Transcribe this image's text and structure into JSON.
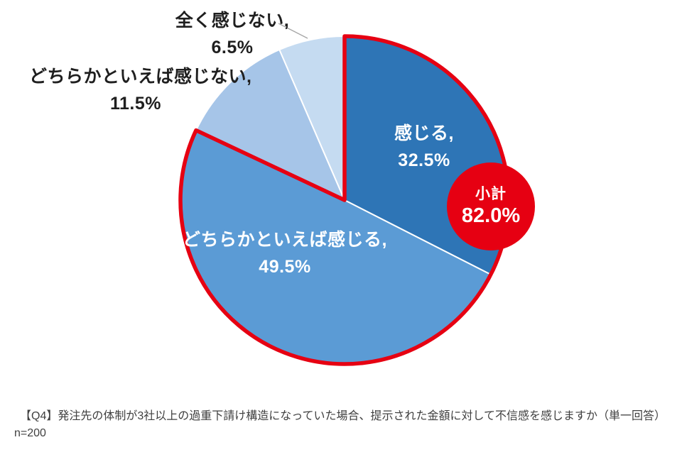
{
  "chart_data": {
    "type": "pie",
    "title": "",
    "categories": [
      "感じる",
      "どちらかといえば感じる",
      "どちらかといえば感じない",
      "全く感じない"
    ],
    "values": [
      32.5,
      49.5,
      11.5,
      6.5
    ],
    "unit": "%",
    "colors": [
      "#2E75B6",
      "#5B9BD5",
      "#A6C5E8",
      "#C5DBF1"
    ],
    "start_angle_deg": 0,
    "direction": "clockwise",
    "slice_separator_color": "#ffffff",
    "subtotal": {
      "label": "小計",
      "value": 82.0,
      "value_label": "82.0%",
      "covers": [
        "感じる",
        "どちらかといえば感じる"
      ],
      "color": "#E60012"
    }
  },
  "labels": {
    "feel": {
      "line1": "感じる,",
      "line2": "32.5%"
    },
    "rather_feel": {
      "line1": "どちらかといえば感じる,",
      "line2": "49.5%"
    },
    "rather_not": {
      "line1": "どちらかといえば感じない,",
      "line2": "11.5%"
    },
    "none": {
      "line1": "全く感じない,",
      "line2": "6.5%"
    }
  },
  "badge": {
    "title": "小計",
    "value": "82.0%"
  },
  "footer": {
    "question": "【Q4】発注先の体制が3社以上の過重下請け構造になっていた場合、提示された金額に対して不信感を感じますか（単一回答）",
    "sample_size": "n=200"
  }
}
